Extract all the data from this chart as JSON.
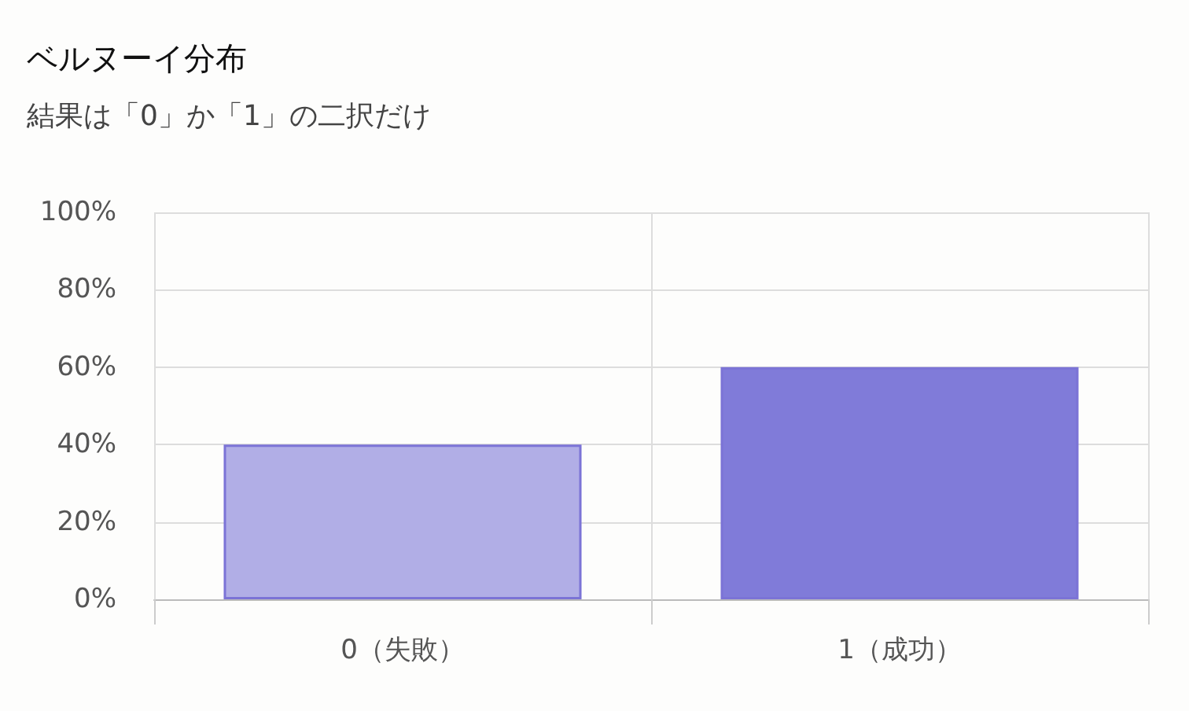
{
  "chart_data": {
    "type": "bar",
    "title": "ベルヌーイ分布",
    "subtitle": "結果は「0」か「1」の二択だけ",
    "categories": [
      "0（失敗）",
      "1（成功）"
    ],
    "values": [
      40,
      60
    ],
    "colors": [
      "#b1aee6",
      "#807bd9"
    ],
    "ylim": [
      0,
      100
    ],
    "yticks": [
      {
        "value": 0,
        "label": "0%"
      },
      {
        "value": 20,
        "label": "20%"
      },
      {
        "value": 40,
        "label": "40%"
      },
      {
        "value": 60,
        "label": "60%"
      },
      {
        "value": 80,
        "label": "80%"
      },
      {
        "value": 100,
        "label": "100%"
      }
    ],
    "grid": true
  }
}
